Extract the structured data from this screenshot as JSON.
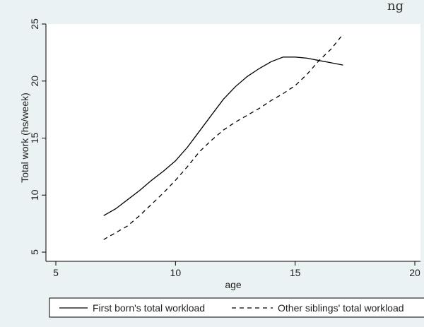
{
  "chart_data": {
    "type": "line",
    "title_fragment": "ng",
    "xlabel": "age",
    "ylabel": "Total work (hs/week)",
    "xlim": [
      5,
      20
    ],
    "ylim": [
      5,
      25
    ],
    "xticks": [
      "5",
      "10",
      "15",
      "20"
    ],
    "yticks": [
      "5",
      "10",
      "15",
      "20",
      "25"
    ],
    "grid": false,
    "legend_position": "bottom",
    "series": [
      {
        "name": "First born's total workload",
        "style": "solid",
        "color": "#000000",
        "x": [
          7,
          7.5,
          8,
          8.5,
          9,
          9.5,
          10,
          10.5,
          11,
          11.5,
          12,
          12.5,
          13,
          13.5,
          14,
          14.5,
          15,
          15.5,
          16,
          16.5,
          17
        ],
        "y": [
          8.2,
          8.8,
          9.6,
          10.4,
          11.3,
          12.1,
          13.0,
          14.2,
          15.6,
          17.0,
          18.4,
          19.5,
          20.4,
          21.1,
          21.7,
          22.1,
          22.1,
          22.0,
          21.8,
          21.6,
          21.4
        ]
      },
      {
        "name": "Other siblings' total workload",
        "style": "dashed",
        "color": "#000000",
        "x": [
          7,
          7.5,
          8,
          8.5,
          9,
          9.5,
          10,
          10.5,
          11,
          11.5,
          12,
          12.5,
          13,
          13.5,
          14,
          14.5,
          15,
          15.5,
          16,
          16.5,
          17
        ],
        "y": [
          6.1,
          6.7,
          7.3,
          8.2,
          9.2,
          10.2,
          11.3,
          12.5,
          13.8,
          14.8,
          15.7,
          16.4,
          17.0,
          17.6,
          18.3,
          18.9,
          19.6,
          20.6,
          21.8,
          22.8,
          24.1
        ]
      }
    ]
  }
}
